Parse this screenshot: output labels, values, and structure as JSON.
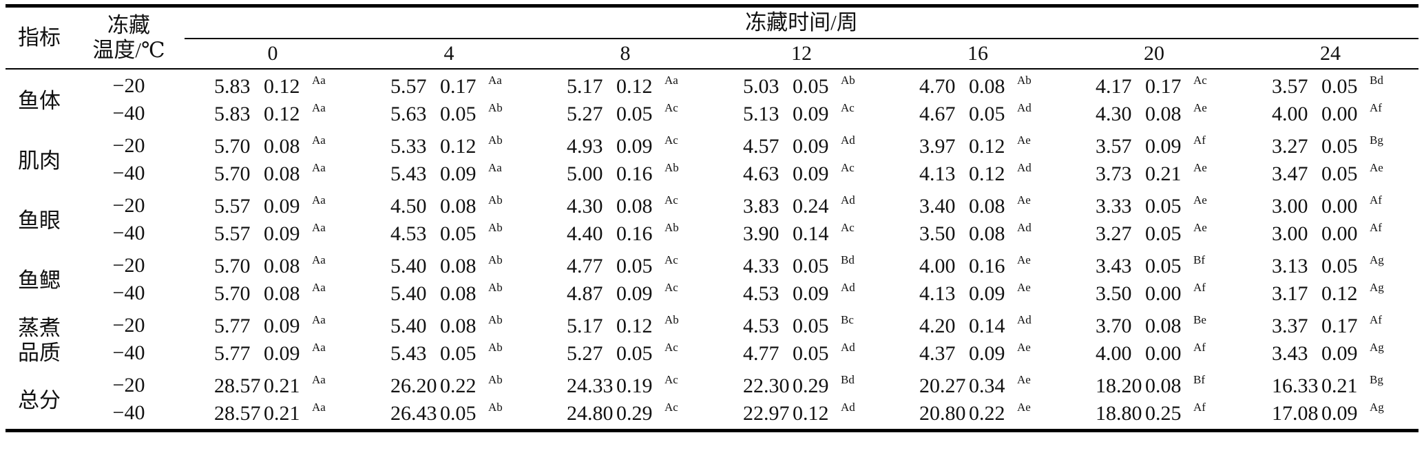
{
  "headers": {
    "index": "指标",
    "temperature": "冻藏\n温度/℃",
    "time": "冻藏时间/周",
    "weeks": [
      "0",
      "4",
      "8",
      "12",
      "16",
      "20",
      "24"
    ]
  },
  "rows": [
    {
      "label": "鱼体",
      "temps": [
        {
          "temp": "−20",
          "cells": [
            {
              "mean": "5.83",
              "sd": "0.12",
              "sig": "Aa"
            },
            {
              "mean": "5.57",
              "sd": "0.17",
              "sig": "Aa"
            },
            {
              "mean": "5.17",
              "sd": "0.12",
              "sig": "Aa"
            },
            {
              "mean": "5.03",
              "sd": "0.05",
              "sig": "Ab"
            },
            {
              "mean": "4.70",
              "sd": "0.08",
              "sig": "Ab"
            },
            {
              "mean": "4.17",
              "sd": "0.17",
              "sig": "Ac"
            },
            {
              "mean": "3.57",
              "sd": "0.05",
              "sig": "Bd"
            }
          ]
        },
        {
          "temp": "−40",
          "cells": [
            {
              "mean": "5.83",
              "sd": "0.12",
              "sig": "Aa"
            },
            {
              "mean": "5.63",
              "sd": "0.05",
              "sig": "Ab"
            },
            {
              "mean": "5.27",
              "sd": "0.05",
              "sig": "Ac"
            },
            {
              "mean": "5.13",
              "sd": "0.09",
              "sig": "Ac"
            },
            {
              "mean": "4.67",
              "sd": "0.05",
              "sig": "Ad"
            },
            {
              "mean": "4.30",
              "sd": "0.08",
              "sig": "Ae"
            },
            {
              "mean": "4.00",
              "sd": "0.00",
              "sig": "Af"
            }
          ]
        }
      ]
    },
    {
      "label": "肌肉",
      "temps": [
        {
          "temp": "−20",
          "cells": [
            {
              "mean": "5.70",
              "sd": "0.08",
              "sig": "Aa"
            },
            {
              "mean": "5.33",
              "sd": "0.12",
              "sig": "Ab"
            },
            {
              "mean": "4.93",
              "sd": "0.09",
              "sig": "Ac"
            },
            {
              "mean": "4.57",
              "sd": "0.09",
              "sig": "Ad"
            },
            {
              "mean": "3.97",
              "sd": "0.12",
              "sig": "Ae"
            },
            {
              "mean": "3.57",
              "sd": "0.09",
              "sig": "Af"
            },
            {
              "mean": "3.27",
              "sd": "0.05",
              "sig": "Bg"
            }
          ]
        },
        {
          "temp": "−40",
          "cells": [
            {
              "mean": "5.70",
              "sd": "0.08",
              "sig": "Aa"
            },
            {
              "mean": "5.43",
              "sd": "0.09",
              "sig": "Aa"
            },
            {
              "mean": "5.00",
              "sd": "0.16",
              "sig": "Ab"
            },
            {
              "mean": "4.63",
              "sd": "0.09",
              "sig": "Ac"
            },
            {
              "mean": "4.13",
              "sd": "0.12",
              "sig": "Ad"
            },
            {
              "mean": "3.73",
              "sd": "0.21",
              "sig": "Ae"
            },
            {
              "mean": "3.47",
              "sd": "0.05",
              "sig": "Ae"
            }
          ]
        }
      ]
    },
    {
      "label": "鱼眼",
      "temps": [
        {
          "temp": "−20",
          "cells": [
            {
              "mean": "5.57",
              "sd": "0.09",
              "sig": "Aa"
            },
            {
              "mean": "4.50",
              "sd": "0.08",
              "sig": "Ab"
            },
            {
              "mean": "4.30",
              "sd": "0.08",
              "sig": "Ac"
            },
            {
              "mean": "3.83",
              "sd": "0.24",
              "sig": "Ad"
            },
            {
              "mean": "3.40",
              "sd": "0.08",
              "sig": "Ae"
            },
            {
              "mean": "3.33",
              "sd": "0.05",
              "sig": "Ae"
            },
            {
              "mean": "3.00",
              "sd": "0.00",
              "sig": "Af"
            }
          ]
        },
        {
          "temp": "−40",
          "cells": [
            {
              "mean": "5.57",
              "sd": "0.09",
              "sig": "Aa"
            },
            {
              "mean": "4.53",
              "sd": "0.05",
              "sig": "Ab"
            },
            {
              "mean": "4.40",
              "sd": "0.16",
              "sig": "Ab"
            },
            {
              "mean": "3.90",
              "sd": "0.14",
              "sig": "Ac"
            },
            {
              "mean": "3.50",
              "sd": "0.08",
              "sig": "Ad"
            },
            {
              "mean": "3.27",
              "sd": "0.05",
              "sig": "Ae"
            },
            {
              "mean": "3.00",
              "sd": "0.00",
              "sig": "Af"
            }
          ]
        }
      ]
    },
    {
      "label": "鱼鳃",
      "temps": [
        {
          "temp": "−20",
          "cells": [
            {
              "mean": "5.70",
              "sd": "0.08",
              "sig": "Aa"
            },
            {
              "mean": "5.40",
              "sd": "0.08",
              "sig": "Ab"
            },
            {
              "mean": "4.77",
              "sd": "0.05",
              "sig": "Ac"
            },
            {
              "mean": "4.33",
              "sd": "0.05",
              "sig": "Bd"
            },
            {
              "mean": "4.00",
              "sd": "0.16",
              "sig": "Ae"
            },
            {
              "mean": "3.43",
              "sd": "0.05",
              "sig": "Bf"
            },
            {
              "mean": "3.13",
              "sd": "0.05",
              "sig": "Ag"
            }
          ]
        },
        {
          "temp": "−40",
          "cells": [
            {
              "mean": "5.70",
              "sd": "0.08",
              "sig": "Aa"
            },
            {
              "mean": "5.40",
              "sd": "0.08",
              "sig": "Ab"
            },
            {
              "mean": "4.87",
              "sd": "0.09",
              "sig": "Ac"
            },
            {
              "mean": "4.53",
              "sd": "0.09",
              "sig": "Ad"
            },
            {
              "mean": "4.13",
              "sd": "0.09",
              "sig": "Ae"
            },
            {
              "mean": "3.50",
              "sd": "0.00",
              "sig": "Af"
            },
            {
              "mean": "3.17",
              "sd": "0.12",
              "sig": "Ag"
            }
          ]
        }
      ]
    },
    {
      "label": "蒸煮\n品质",
      "temps": [
        {
          "temp": "−20",
          "cells": [
            {
              "mean": "5.77",
              "sd": "0.09",
              "sig": "Aa"
            },
            {
              "mean": "5.40",
              "sd": "0.08",
              "sig": "Ab"
            },
            {
              "mean": "5.17",
              "sd": "0.12",
              "sig": "Ab"
            },
            {
              "mean": "4.53",
              "sd": "0.05",
              "sig": "Bc"
            },
            {
              "mean": "4.20",
              "sd": "0.14",
              "sig": "Ad"
            },
            {
              "mean": "3.70",
              "sd": "0.08",
              "sig": "Be"
            },
            {
              "mean": "3.37",
              "sd": "0.17",
              "sig": "Af"
            }
          ]
        },
        {
          "temp": "−40",
          "cells": [
            {
              "mean": "5.77",
              "sd": "0.09",
              "sig": "Aa"
            },
            {
              "mean": "5.43",
              "sd": "0.05",
              "sig": "Ab"
            },
            {
              "mean": "5.27",
              "sd": "0.05",
              "sig": "Ac"
            },
            {
              "mean": "4.77",
              "sd": "0.05",
              "sig": "Ad"
            },
            {
              "mean": "4.37",
              "sd": "0.09",
              "sig": "Ae"
            },
            {
              "mean": "4.00",
              "sd": "0.00",
              "sig": "Af"
            },
            {
              "mean": "3.43",
              "sd": "0.09",
              "sig": "Ag"
            }
          ]
        }
      ]
    },
    {
      "label": "总分",
      "temps": [
        {
          "temp": "−20",
          "cells": [
            {
              "mean": "28.57",
              "sd": "0.21",
              "sig": "Aa"
            },
            {
              "mean": "26.20",
              "sd": "0.22",
              "sig": "Ab"
            },
            {
              "mean": "24.33",
              "sd": "0.19",
              "sig": "Ac"
            },
            {
              "mean": "22.30",
              "sd": "0.29",
              "sig": "Bd"
            },
            {
              "mean": "20.27",
              "sd": "0.34",
              "sig": "Ae"
            },
            {
              "mean": "18.20",
              "sd": "0.08",
              "sig": "Bf"
            },
            {
              "mean": "16.33",
              "sd": "0.21",
              "sig": "Bg"
            }
          ]
        },
        {
          "temp": "−40",
          "cells": [
            {
              "mean": "28.57",
              "sd": "0.21",
              "sig": "Aa"
            },
            {
              "mean": "26.43",
              "sd": "0.05",
              "sig": "Ab"
            },
            {
              "mean": "24.80",
              "sd": "0.29",
              "sig": "Ac"
            },
            {
              "mean": "22.97",
              "sd": "0.12",
              "sig": "Ad"
            },
            {
              "mean": "20.80",
              "sd": "0.22",
              "sig": "Ae"
            },
            {
              "mean": "18.80",
              "sd": "0.25",
              "sig": "Af"
            },
            {
              "mean": "17.08",
              "sd": "0.09",
              "sig": "Ag"
            }
          ]
        }
      ]
    }
  ]
}
